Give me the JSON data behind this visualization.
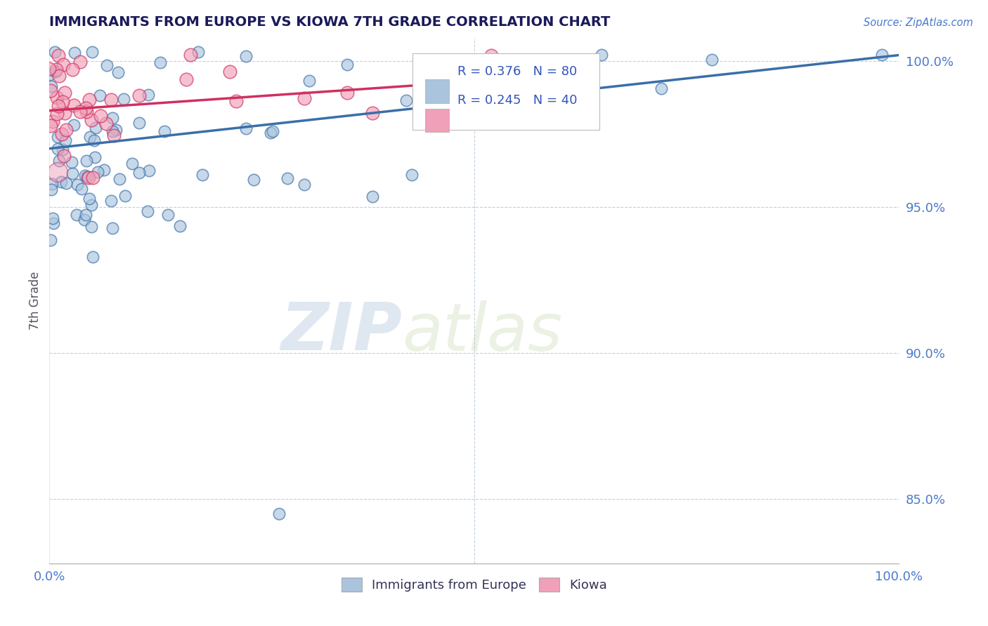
{
  "title": "IMMIGRANTS FROM EUROPE VS KIOWA 7TH GRADE CORRELATION CHART",
  "source_text": "Source: ZipAtlas.com",
  "ylabel": "7th Grade",
  "xlim": [
    0.0,
    1.0
  ],
  "ylim": [
    0.828,
    1.008
  ],
  "yticks": [
    0.85,
    0.9,
    0.95,
    1.0
  ],
  "ytick_labels": [
    "85.0%",
    "90.0%",
    "95.0%",
    "100.0%"
  ],
  "xticks": [
    0.0,
    1.0
  ],
  "xtick_labels": [
    "0.0%",
    "100.0%"
  ],
  "legend_labels": [
    "Immigrants from Europe",
    "Kiowa"
  ],
  "blue_color": "#aac4de",
  "pink_color": "#f0a0b8",
  "blue_line_color": "#3a6fa8",
  "pink_line_color": "#d03060",
  "R_blue": 0.376,
  "N_blue": 80,
  "R_pink": 0.245,
  "N_pink": 40,
  "watermark_zip": "ZIP",
  "watermark_atlas": "atlas",
  "background_color": "#ffffff",
  "grid_color": "#c0d0e0",
  "title_color": "#1a1a5a",
  "axis_label_color": "#3a5a9a",
  "tick_label_color": "#4a7acc",
  "legend_R_color": "#3355bb"
}
